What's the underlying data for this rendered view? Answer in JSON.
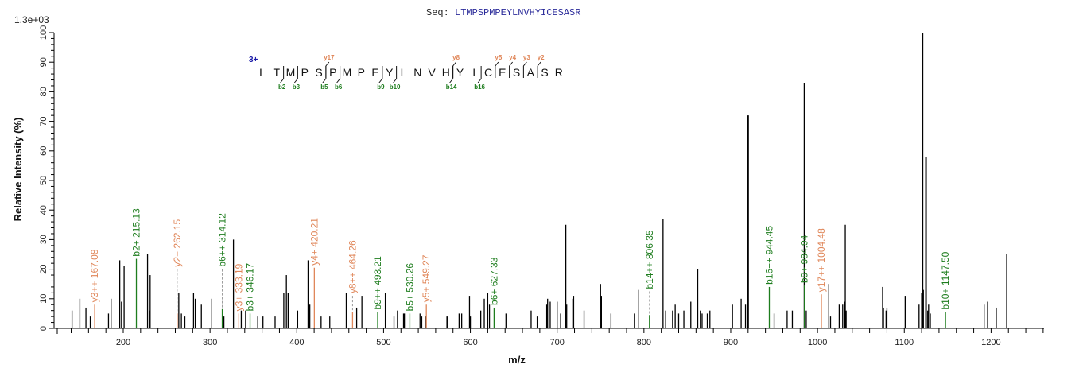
{
  "header": {
    "seq_label": "Seq:",
    "sequence": "LTMPSPMPEYLNVHYICESASR",
    "scale_label": "1.3e+03"
  },
  "colors": {
    "b_ion": "#1e7d1e",
    "y_ion": "#e0875a",
    "unassigned": "#000000",
    "charge": "#1a1aa8",
    "sequence_text": "#2b2b9a"
  },
  "chart_data": {
    "type": "bar",
    "title": "Seq: LTMPSPMPEYLNVHYICESASR",
    "xlabel": "m/z",
    "ylabel": "Relative   Intensity (%)",
    "xlim": [
      120,
      1265
    ],
    "ylim": [
      0,
      100
    ],
    "max_intensity_label": "1.3e+03",
    "x_ticks": [
      200,
      300,
      400,
      500,
      600,
      700,
      800,
      900,
      1000,
      1100,
      1200
    ],
    "y_ticks": [
      0,
      10,
      20,
      30,
      40,
      50,
      60,
      70,
      80,
      90,
      100
    ],
    "grid": false,
    "legend": null,
    "precursor_charge": "3+",
    "sequence": [
      "L",
      "T",
      "M",
      "P",
      "S",
      "P",
      "M",
      "P",
      "E",
      "Y",
      "L",
      "N",
      "V",
      "H",
      "Y",
      "I",
      "C",
      "E",
      "S",
      "A",
      "S",
      "R"
    ],
    "b_ions_marked": [
      {
        "label": "b2",
        "after": 2
      },
      {
        "label": "b3",
        "after": 3
      },
      {
        "label": "b5",
        "after": 5
      },
      {
        "label": "b6",
        "after": 6
      },
      {
        "label": "b9",
        "after": 9
      },
      {
        "label": "b10",
        "after": 10
      },
      {
        "label": "b14",
        "after": 14
      },
      {
        "label": "b16",
        "after": 16
      }
    ],
    "y_ions_marked": [
      {
        "label": "y17",
        "after": 5
      },
      {
        "label": "y8",
        "after": 14
      },
      {
        "label": "y5",
        "after": 17
      },
      {
        "label": "y4",
        "after": 18
      },
      {
        "label": "y3",
        "after": 19
      },
      {
        "label": "y2",
        "after": 20
      }
    ],
    "annotated_peaks": [
      {
        "label": "y3++ 167.08",
        "mz": 167.08,
        "intensity": 8,
        "type": "y"
      },
      {
        "label": "b2+ 215.13",
        "mz": 215.13,
        "intensity": 23.5,
        "type": "b"
      },
      {
        "label": "y2+ 262.15",
        "mz": 262.15,
        "intensity": 5,
        "type": "y",
        "dashed": true,
        "label_y": 20
      },
      {
        "label": "b6++ 314.12",
        "mz": 314.12,
        "intensity": 6.5,
        "type": "b",
        "dashed": true,
        "label_y": 20
      },
      {
        "label": "y3+ 333.19",
        "mz": 333.19,
        "intensity": 5,
        "type": "y"
      },
      {
        "label": "b3+ 346.17",
        "mz": 346.17,
        "intensity": 5,
        "type": "b"
      },
      {
        "label": "y4+ 420.21",
        "mz": 420.21,
        "intensity": 20.5,
        "type": "y"
      },
      {
        "label": "y8++ 464.26",
        "mz": 464.26,
        "intensity": 5.5,
        "type": "y",
        "dashed": true,
        "label_y": 11
      },
      {
        "label": "b9++ 493.21",
        "mz": 493.21,
        "intensity": 5.5,
        "type": "b"
      },
      {
        "label": "b5+ 530.26",
        "mz": 530.26,
        "intensity": 5,
        "type": "b"
      },
      {
        "label": "y5+ 549.27",
        "mz": 549.27,
        "intensity": 8,
        "type": "y"
      },
      {
        "label": "b6+ 627.33",
        "mz": 627.33,
        "intensity": 7,
        "type": "b"
      },
      {
        "label": "b14++ 806.35",
        "mz": 806.35,
        "intensity": 4.5,
        "type": "b",
        "dashed": true,
        "label_y": 12.5
      },
      {
        "label": "b16++ 944.45",
        "mz": 944.45,
        "intensity": 14,
        "type": "b"
      },
      {
        "label": "b9+ 984.94",
        "mz": 984.94,
        "intensity": 14.5,
        "type": "b"
      },
      {
        "label": "y17++ 1004.48",
        "mz": 1004.48,
        "intensity": 11.5,
        "type": "y"
      },
      {
        "label": "b10+ 1147.50",
        "mz": 1147.5,
        "intensity": 5.5,
        "type": "b"
      }
    ],
    "unassigned_peaks": {
      "mz": [
        141,
        150,
        157,
        162,
        183,
        186,
        196,
        198,
        201,
        228,
        230,
        231,
        264,
        267,
        271,
        281,
        283,
        290,
        302,
        316,
        327,
        336,
        341,
        355,
        361,
        375,
        385,
        388,
        390,
        401,
        413,
        415,
        428,
        438,
        457,
        469,
        475,
        502,
        512,
        516,
        523,
        524,
        542,
        544,
        548,
        573,
        574,
        587,
        590,
        599,
        600,
        612,
        616,
        620,
        622,
        641,
        670,
        677,
        688,
        689,
        692,
        700,
        704,
        710,
        711,
        718,
        719,
        731,
        750,
        751,
        762,
        789,
        794,
        822,
        825,
        833,
        836,
        840,
        846,
        854,
        862,
        865,
        867,
        873,
        876,
        902,
        912,
        917,
        920,
        950,
        965,
        971,
        985,
        987,
        1013,
        1015,
        1025,
        1029,
        1031,
        1032,
        1033,
        1075,
        1076,
        1079,
        1080,
        1101,
        1117,
        1120,
        1121,
        1122,
        1125,
        1127,
        1128,
        1130,
        1192,
        1196,
        1206,
        1218
      ],
      "intensity": [
        6,
        10,
        7,
        4,
        5,
        10,
        23,
        9,
        21,
        25,
        6,
        18,
        12,
        5,
        4,
        12,
        10,
        8,
        10,
        4,
        30,
        6,
        6,
        4,
        4,
        4,
        12,
        18,
        12,
        6,
        23,
        8,
        4,
        4,
        12,
        7,
        11,
        12,
        4,
        6,
        5,
        5,
        5,
        4,
        4,
        4,
        4,
        5,
        5,
        11,
        4,
        6,
        10,
        12,
        8,
        5,
        6,
        4,
        8,
        10,
        9,
        9,
        5,
        35,
        8,
        10,
        11,
        6,
        15,
        11,
        5,
        5,
        13,
        37,
        6,
        6,
        8,
        5,
        6,
        9,
        20,
        6,
        5,
        5,
        6,
        8,
        10,
        8,
        72,
        5,
        6,
        6,
        83,
        6,
        15,
        4,
        8,
        8,
        9,
        35,
        6,
        14,
        7,
        6,
        7,
        11,
        8,
        12,
        100,
        13,
        58,
        6,
        8,
        5,
        8,
        9,
        7,
        25
      ]
    }
  }
}
